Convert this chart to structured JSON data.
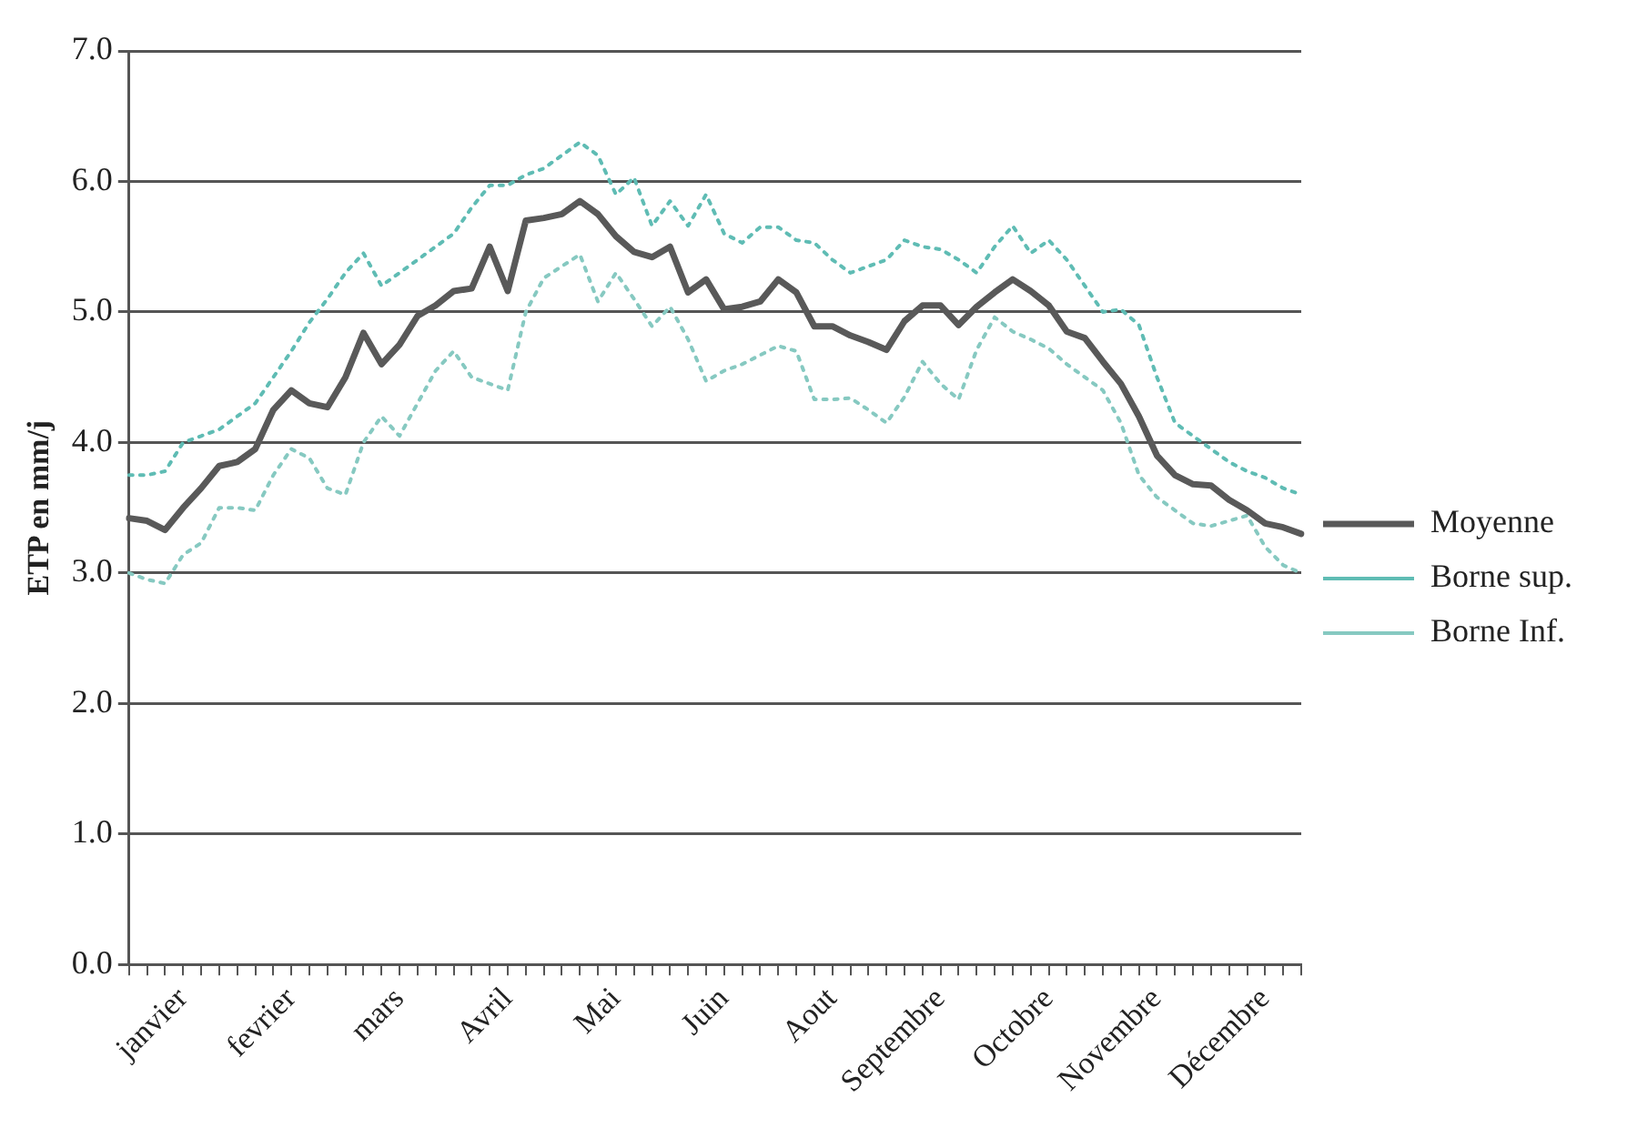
{
  "chart_data": {
    "type": "line",
    "ylabel": "ETP en mm/j",
    "categories": [
      null,
      null,
      null,
      "janvier",
      null,
      null,
      null,
      null,
      null,
      "fevrier",
      null,
      null,
      null,
      null,
      null,
      "mars",
      null,
      null,
      null,
      null,
      null,
      "Avril",
      null,
      null,
      null,
      null,
      null,
      "Mai",
      null,
      null,
      null,
      null,
      null,
      "Juin",
      null,
      null,
      null,
      null,
      null,
      "Aout",
      null,
      null,
      null,
      null,
      null,
      "Septembre",
      null,
      null,
      null,
      null,
      null,
      "Octobre",
      null,
      null,
      null,
      null,
      null,
      "Novembre",
      null,
      null,
      null,
      null,
      null,
      "Décembre",
      null,
      null
    ],
    "series": [
      {
        "name": "Moyenne",
        "color": "#595959",
        "line_style": "solid",
        "values": [
          3.42,
          3.4,
          3.33,
          3.5,
          3.65,
          3.82,
          3.85,
          3.95,
          4.25,
          4.4,
          4.3,
          4.27,
          4.5,
          4.84,
          4.6,
          4.75,
          4.97,
          5.05,
          5.16,
          5.18,
          5.5,
          5.16,
          5.7,
          5.72,
          5.75,
          5.85,
          5.75,
          5.58,
          5.46,
          5.42,
          5.5,
          5.15,
          5.25,
          5.02,
          5.04,
          5.08,
          5.25,
          5.15,
          4.89,
          4.89,
          4.82,
          4.77,
          4.71,
          4.93,
          5.05,
          5.05,
          4.9,
          5.04,
          5.15,
          5.25,
          5.16,
          5.05,
          4.85,
          4.8,
          4.62,
          4.45,
          4.2,
          3.9,
          3.75,
          3.68,
          3.67,
          3.56,
          3.48,
          3.38,
          3.35,
          3.3
        ]
      },
      {
        "name": "Borne sup.",
        "color": "#5fbcb4",
        "line_style": "dotted",
        "values": [
          3.75,
          3.75,
          3.78,
          4.0,
          4.05,
          4.1,
          4.2,
          4.3,
          4.5,
          4.7,
          4.92,
          5.1,
          5.3,
          5.45,
          5.2,
          5.3,
          5.4,
          5.5,
          5.6,
          5.8,
          5.97,
          5.97,
          6.05,
          6.1,
          6.2,
          6.3,
          6.2,
          5.9,
          6.03,
          5.66,
          5.85,
          5.66,
          5.9,
          5.6,
          5.53,
          5.65,
          5.65,
          5.55,
          5.53,
          5.4,
          5.3,
          5.35,
          5.4,
          5.55,
          5.5,
          5.48,
          5.4,
          5.3,
          5.5,
          5.66,
          5.45,
          5.55,
          5.4,
          5.2,
          5.0,
          5.02,
          4.9,
          4.5,
          4.15,
          4.05,
          3.95,
          3.85,
          3.78,
          3.73,
          3.65,
          3.6
        ]
      },
      {
        "name": "Borne Inf.",
        "color": "#86c9c1",
        "line_style": "dotted",
        "values": [
          3.0,
          2.95,
          2.92,
          3.14,
          3.23,
          3.5,
          3.5,
          3.48,
          3.75,
          3.95,
          3.88,
          3.65,
          3.6,
          4.0,
          4.2,
          4.05,
          4.3,
          4.55,
          4.7,
          4.5,
          4.45,
          4.4,
          5.0,
          5.26,
          5.35,
          5.44,
          5.08,
          5.3,
          5.1,
          4.89,
          5.04,
          4.79,
          4.47,
          4.55,
          4.6,
          4.67,
          4.74,
          4.7,
          4.33,
          4.33,
          4.34,
          4.25,
          4.15,
          4.35,
          4.62,
          4.45,
          4.33,
          4.71,
          4.96,
          4.85,
          4.79,
          4.72,
          4.6,
          4.5,
          4.4,
          4.15,
          3.75,
          3.58,
          3.48,
          3.38,
          3.36,
          3.4,
          3.44,
          3.2,
          3.06,
          3.0
        ]
      }
    ],
    "ylim": [
      0,
      7
    ],
    "yticks": [
      {
        "value": 0,
        "label": "0.0"
      },
      {
        "value": 1,
        "label": "1.0"
      },
      {
        "value": 2,
        "label": "2.0"
      },
      {
        "value": 3,
        "label": "3.0"
      },
      {
        "value": 4,
        "label": "4.0"
      },
      {
        "value": 5,
        "label": "5.0"
      },
      {
        "value": 6,
        "label": "6.0"
      },
      {
        "value": 7,
        "label": "7.0"
      }
    ],
    "grid": "y",
    "legend": "right",
    "marker": "none"
  }
}
